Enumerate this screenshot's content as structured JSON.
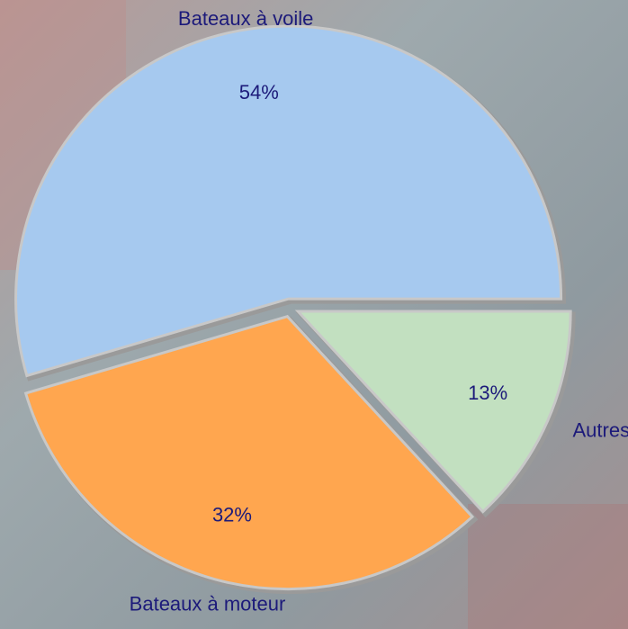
{
  "chart_data": {
    "type": "pie",
    "categories": [
      "Bateaux à voile",
      "Bateaux à moteur",
      "Autres"
    ],
    "values": [
      54,
      32,
      13
    ],
    "value_labels": [
      "54%",
      "32%",
      "13%"
    ],
    "colors": [
      "#a6c9ef",
      "#ffa64f",
      "#c2e0c0"
    ]
  }
}
